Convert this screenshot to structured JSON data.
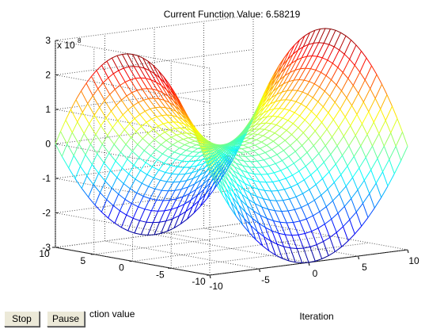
{
  "figure": {
    "title": "Current Function Value: 6.58219",
    "z_exponent_label": "x 10",
    "z_exponent_power": "8",
    "x_axis_label": "Iteration",
    "y_axis_label": "ction value"
  },
  "buttons": {
    "stop_label": "Stop",
    "pause_label": "Pause"
  },
  "chart_data": {
    "type": "surface",
    "title": "Current Function Value: 6.58219",
    "xlabel": "Iteration",
    "ylabel": "ction value",
    "x_ticks": [
      "-10",
      "-5",
      "0",
      "5",
      "10"
    ],
    "y_ticks": [
      "10",
      "5",
      "0",
      "-5",
      "-10"
    ],
    "z_ticks": [
      "3",
      "2",
      "1",
      "0",
      "-1",
      "-2",
      "-3"
    ],
    "xlim": [
      -10,
      10
    ],
    "ylim": [
      -10,
      10
    ],
    "zlim": [
      -3,
      3
    ],
    "z_scale": "x 10^8",
    "grid": true,
    "colormap": "jet",
    "mesh_resolution": 30
  }
}
